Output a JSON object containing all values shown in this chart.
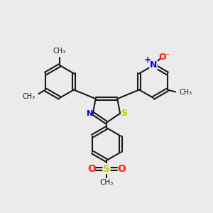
{
  "bg_color": "#ebebeb",
  "bond_color": "#1a1a1a",
  "bond_width": 1.5,
  "N_color": "#0000ff",
  "S_color": "#cccc00",
  "O_color": "#ff2200",
  "text_color": "#1a1a1a",
  "figsize": [
    3.0,
    3.0
  ],
  "dpi": 100,
  "xlim": [
    0,
    10
  ],
  "ylim": [
    0,
    10
  ]
}
